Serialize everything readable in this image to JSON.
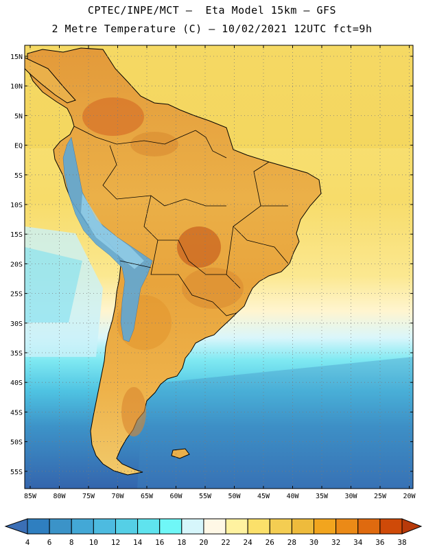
{
  "title": {
    "line1": "CPTEC/INPE/MCT —  Eta Model 15km — GFS",
    "line2": "2 Metre Temperature (C) — 10/02/2021 12UTC fct=9h"
  },
  "map": {
    "lat_labels": [
      "15N",
      "10N",
      "5N",
      "EQ",
      "5S",
      "10S",
      "15S",
      "20S",
      "25S",
      "30S",
      "35S",
      "40S",
      "45S",
      "50S",
      "55S"
    ],
    "lon_labels": [
      "85W",
      "80W",
      "75W",
      "70W",
      "65W",
      "60W",
      "55W",
      "50W",
      "45W",
      "40W",
      "35W",
      "30W",
      "25W",
      "20W"
    ]
  },
  "colorbar": {
    "labels": [
      "4",
      "6",
      "8",
      "10",
      "12",
      "14",
      "16",
      "18",
      "20",
      "22",
      "24",
      "26",
      "28",
      "30",
      "32",
      "34",
      "36",
      "38"
    ],
    "colors": [
      "#3b6fb6",
      "#2f7fc0",
      "#3b93c8",
      "#43a8d6",
      "#4dbbe0",
      "#55cfe6",
      "#5fe3ee",
      "#6ff7f7",
      "#d6f6fb",
      "#fff8e6",
      "#fff2a0",
      "#fbe06a",
      "#f4cd52",
      "#eebb3c",
      "#f2a51e",
      "#eb8a17",
      "#df6a0f",
      "#cf4a08",
      "#b83a0a"
    ]
  },
  "palette": {
    "ocean_cold": "#3c6fb4",
    "ocean_mid": "#4fc3e2",
    "ocean_light": "#d6f6fb",
    "ocean_warm": "#fbe06a",
    "land_hot": "#e3a03a",
    "land_very_hot": "#d8772a",
    "andes": "#5fa8d6"
  }
}
